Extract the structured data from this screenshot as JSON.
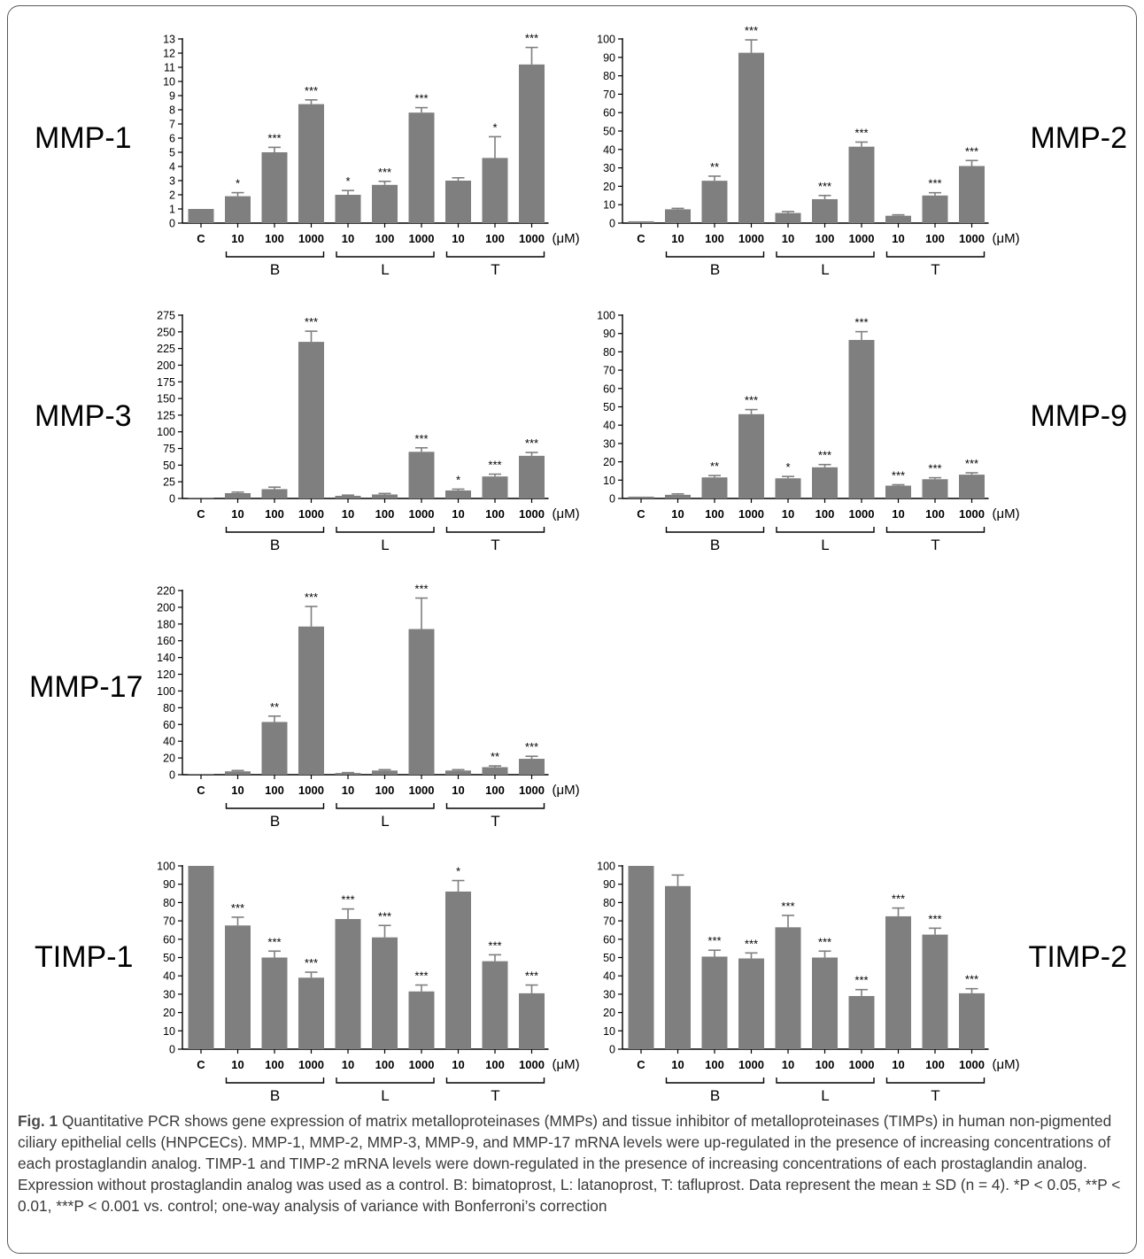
{
  "colors": {
    "bar": "#7f7f7f",
    "axis": "#000000",
    "text": "#000000",
    "caption_text": "#3a3a3a"
  },
  "chart_data": [
    {
      "type": "bar",
      "name": "MMP-1",
      "label": "MMP-1",
      "categories": [
        "C",
        "10",
        "100",
        "1000",
        "10",
        "100",
        "1000",
        "10",
        "100",
        "1000"
      ],
      "groups": [
        "B",
        "L",
        "T"
      ],
      "unit": "(μM)",
      "ylim": [
        0,
        13
      ],
      "yticks": [
        0,
        1,
        2,
        3,
        4,
        5,
        6,
        7,
        8,
        9,
        10,
        11,
        12,
        13
      ],
      "values": [
        1.0,
        1.9,
        5.0,
        8.4,
        2.0,
        2.7,
        7.8,
        3.0,
        4.6,
        11.2
      ],
      "errors": [
        0.0,
        0.25,
        0.35,
        0.3,
        0.3,
        0.25,
        0.35,
        0.2,
        1.5,
        1.2
      ],
      "significance": [
        "",
        "*",
        "***",
        "***",
        "*",
        "***",
        "***",
        "",
        "*",
        "***"
      ]
    },
    {
      "type": "bar",
      "name": "MMP-2",
      "label": "MMP-2",
      "categories": [
        "C",
        "10",
        "100",
        "1000",
        "10",
        "100",
        "1000",
        "10",
        "100",
        "1000"
      ],
      "groups": [
        "B",
        "L",
        "T"
      ],
      "unit": "(μM)",
      "ylim": [
        0,
        100
      ],
      "yticks": [
        0,
        10,
        20,
        30,
        40,
        50,
        60,
        70,
        80,
        90,
        100
      ],
      "values": [
        1.0,
        7.5,
        23.0,
        92.5,
        5.5,
        13.0,
        41.5,
        4.0,
        15.0,
        31.0
      ],
      "errors": [
        0.0,
        0.5,
        2.5,
        7.0,
        0.8,
        2.0,
        2.5,
        0.5,
        1.5,
        3.0
      ],
      "significance": [
        "",
        "",
        "**",
        "***",
        "",
        "***",
        "***",
        "",
        "***",
        "***"
      ]
    },
    {
      "type": "bar",
      "name": "MMP-3",
      "label": "MMP-3",
      "categories": [
        "C",
        "10",
        "100",
        "1000",
        "10",
        "100",
        "1000",
        "10",
        "100",
        "1000"
      ],
      "groups": [
        "B",
        "L",
        "T"
      ],
      "unit": "(μM)",
      "ylim": [
        0,
        275
      ],
      "yticks": [
        0,
        25,
        50,
        75,
        100,
        125,
        150,
        175,
        200,
        225,
        250,
        275
      ],
      "values": [
        1.0,
        8.0,
        14.0,
        235.0,
        4.0,
        6.0,
        70.0,
        12.0,
        33.0,
        64.0
      ],
      "errors": [
        0.0,
        1.5,
        3.0,
        16.0,
        1.0,
        1.5,
        6.0,
        2.0,
        3.5,
        5.0
      ],
      "significance": [
        "",
        "",
        "",
        "***",
        "",
        "",
        "***",
        "*",
        "***",
        "***"
      ]
    },
    {
      "type": "bar",
      "name": "MMP-9",
      "label": "MMP-9",
      "categories": [
        "C",
        "10",
        "100",
        "1000",
        "10",
        "100",
        "1000",
        "10",
        "100",
        "1000"
      ],
      "groups": [
        "B",
        "L",
        "T"
      ],
      "unit": "(μM)",
      "ylim": [
        0,
        100
      ],
      "yticks": [
        0,
        10,
        20,
        30,
        40,
        50,
        60,
        70,
        80,
        90,
        100
      ],
      "values": [
        1.0,
        2.0,
        11.5,
        46.0,
        11.0,
        17.0,
        86.5,
        7.0,
        10.5,
        13.0
      ],
      "errors": [
        0.0,
        0.5,
        1.0,
        2.5,
        1.0,
        1.5,
        4.5,
        0.5,
        0.8,
        1.0
      ],
      "significance": [
        "",
        "",
        "**",
        "***",
        "*",
        "***",
        "***",
        "***",
        "***",
        "***"
      ]
    },
    {
      "type": "bar",
      "name": "MMP-17",
      "label": "MMP-17",
      "categories": [
        "C",
        "10",
        "100",
        "1000",
        "10",
        "100",
        "1000",
        "10",
        "100",
        "1000"
      ],
      "groups": [
        "B",
        "L",
        "T"
      ],
      "unit": "(μM)",
      "ylim": [
        0,
        220
      ],
      "yticks": [
        0,
        20,
        40,
        60,
        80,
        100,
        120,
        140,
        160,
        180,
        200,
        220
      ],
      "values": [
        1.0,
        4.0,
        63.0,
        177.0,
        2.0,
        5.0,
        174.0,
        5.0,
        9.0,
        19.0
      ],
      "errors": [
        0.0,
        1.0,
        7.0,
        24.0,
        0.5,
        1.0,
        37.0,
        1.0,
        1.5,
        3.0
      ],
      "significance": [
        "",
        "",
        "**",
        "***",
        "",
        "",
        "***",
        "",
        "**",
        "***"
      ]
    },
    {
      "type": "bar",
      "name": "TIMP-1",
      "label": "TIMP-1",
      "categories": [
        "C",
        "10",
        "100",
        "1000",
        "10",
        "100",
        "1000",
        "10",
        "100",
        "1000"
      ],
      "groups": [
        "B",
        "L",
        "T"
      ],
      "unit": "(μM)",
      "ylim": [
        0,
        100
      ],
      "yticks": [
        0,
        10,
        20,
        30,
        40,
        50,
        60,
        70,
        80,
        90,
        100
      ],
      "values": [
        100.0,
        67.5,
        50.0,
        39.0,
        71.0,
        61.0,
        31.5,
        86.0,
        48.0,
        30.5
      ],
      "errors": [
        0.0,
        4.5,
        3.5,
        3.0,
        5.5,
        6.5,
        3.5,
        6.0,
        3.5,
        4.5
      ],
      "significance": [
        "",
        "***",
        "***",
        "***",
        "***",
        "***",
        "***",
        "*",
        "***",
        "***"
      ]
    },
    {
      "type": "bar",
      "name": "TIMP-2",
      "label": "TIMP-2",
      "categories": [
        "C",
        "10",
        "100",
        "1000",
        "10",
        "100",
        "1000",
        "10",
        "100",
        "1000"
      ],
      "groups": [
        "B",
        "L",
        "T"
      ],
      "unit": "(μM)",
      "ylim": [
        0,
        100
      ],
      "yticks": [
        0,
        10,
        20,
        30,
        40,
        50,
        60,
        70,
        80,
        90,
        100
      ],
      "values": [
        100.0,
        89.0,
        50.5,
        49.5,
        66.5,
        50.0,
        29.0,
        72.5,
        62.5,
        30.5
      ],
      "errors": [
        0.0,
        6.0,
        3.5,
        3.0,
        6.5,
        3.5,
        3.5,
        4.5,
        3.5,
        2.5
      ],
      "significance": [
        "",
        "",
        "***",
        "***",
        "***",
        "***",
        "***",
        "***",
        "***",
        "***"
      ]
    }
  ],
  "caption": {
    "label": "Fig. 1",
    "text": " Quantitative PCR shows gene expression of matrix metalloproteinases (MMPs) and tissue inhibitor of metalloproteinases (TIMPs) in human non-pigmented ciliary epithelial cells (HNPCECs). MMP-1, MMP-2, MMP-3, MMP-9, and MMP-17 mRNA levels were up-regulated in the presence of increasing concentrations of each prostaglandin analog. TIMP-1 and TIMP-2 mRNA levels were down-regulated in the presence of increasing concentrations of each prostaglandin analog. Expression without prostaglandin analog was used as a control. B: bimatoprost, L: latanoprost, T: tafluprost. Data represent the mean ± SD (n = 4). *P < 0.05, **P < 0.01, ***P < 0.001 vs. control; one-way analysis of variance with Bonferroni’s correction"
  }
}
